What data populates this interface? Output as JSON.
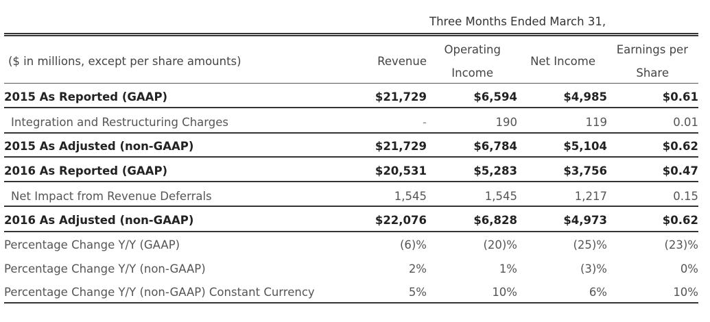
{
  "header": {
    "period": "Three Months Ended March 31,",
    "units_label": "($ in millions, except per share amounts)",
    "col_revenue": "Revenue",
    "col_operating_l1": "Operating",
    "col_operating_l2": "Income",
    "col_net_income": "Net Income",
    "col_eps_l1": "Earnings per",
    "col_eps_l2": "Share"
  },
  "rows": [
    {
      "label": "2015 As Reported (GAAP)",
      "revenue": "$21,729",
      "operating_income": "$6,594",
      "net_income": "$4,985",
      "eps": "$0.61"
    },
    {
      "label": "Integration and Restructuring Charges",
      "revenue": "-",
      "operating_income": "190",
      "net_income": "119",
      "eps": "0.01"
    },
    {
      "label": "2015 As Adjusted (non-GAAP)",
      "revenue": "$21,729",
      "operating_income": "$6,784",
      "net_income": "$5,104",
      "eps": "$0.62"
    },
    {
      "label": "2016 As Reported (GAAP)",
      "revenue": "$20,531",
      "operating_income": "$5,283",
      "net_income": "$3,756",
      "eps": "$0.47"
    },
    {
      "label": "Net Impact from Revenue Deferrals",
      "revenue": "1,545",
      "operating_income": "1,545",
      "net_income": "1,217",
      "eps": "0.15"
    },
    {
      "label": "2016 As Adjusted (non-GAAP)",
      "revenue": "$22,076",
      "operating_income": "$6,828",
      "net_income": "$4,973",
      "eps": "$0.62"
    },
    {
      "label": "Percentage Change Y/Y (GAAP)",
      "revenue": "(6)%",
      "operating_income": "(20)%",
      "net_income": "(25)%",
      "eps": "(23)%"
    },
    {
      "label": "Percentage Change Y/Y (non-GAAP)",
      "revenue": "2%",
      "operating_income": "1%",
      "net_income": "(3)%",
      "eps": "0%"
    },
    {
      "label": "Percentage Change Y/Y (non-GAAP) Constant Currency",
      "revenue": "5%",
      "operating_income": "10%",
      "net_income": "6%",
      "eps": "10%"
    }
  ]
}
